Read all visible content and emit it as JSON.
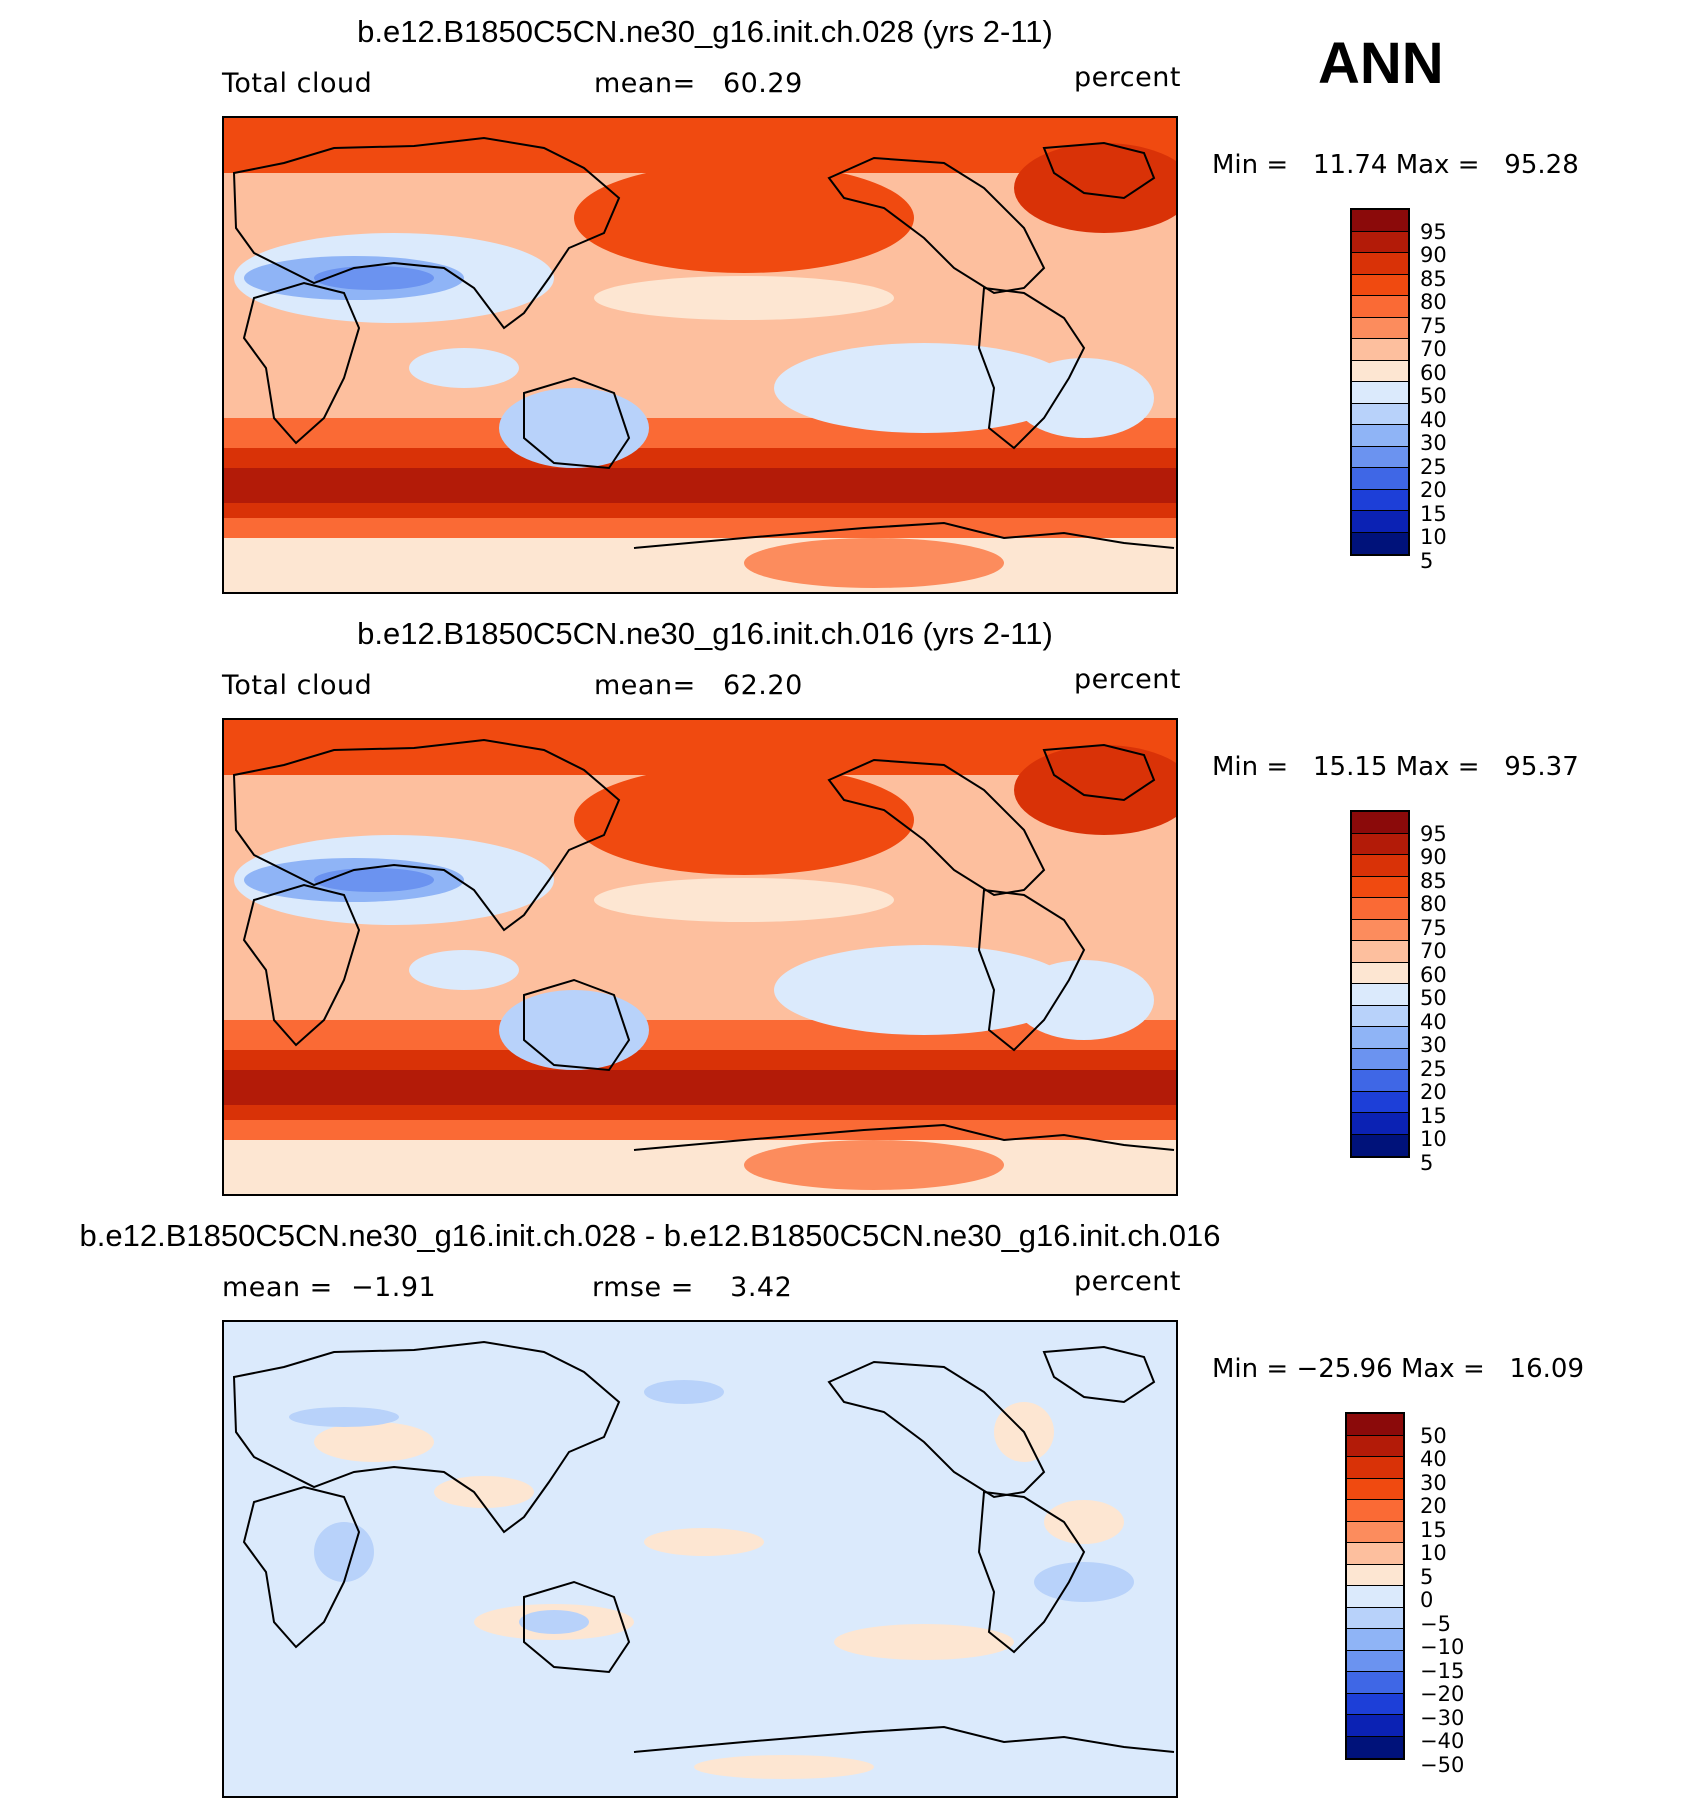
{
  "season_label": "ANN",
  "panels": [
    {
      "title": "b.e12.B1850C5CN.ne30_g16.init.ch.028 (yrs 2-11)",
      "left_label": "Total cloud",
      "center_label": "mean=",
      "center_value": "60.29",
      "units": "percent",
      "min_label": "Min =",
      "min_value": "11.74",
      "max_label": "Max =",
      "max_value": "95.28",
      "colorbar_labels": [
        "95",
        "90",
        "85",
        "80",
        "75",
        "70",
        "60",
        "50",
        "40",
        "30",
        "25",
        "20",
        "15",
        "10",
        "5"
      ],
      "colorbar_colors": [
        "#8b0a0a",
        "#b31b08",
        "#d93207",
        "#f04a10",
        "#fa6a35",
        "#fc8c5d",
        "#fdbf9e",
        "#fde6d2",
        "#dbeafc",
        "#b8d2fa",
        "#8fb4f6",
        "#6b93f0",
        "#3f67e6",
        "#1d3fd8",
        "#0b22b4",
        "#00127a"
      ],
      "field": "total_cloud_A"
    },
    {
      "title": "b.e12.B1850C5CN.ne30_g16.init.ch.016 (yrs 2-11)",
      "left_label": "Total cloud",
      "center_label": "mean=",
      "center_value": "62.20",
      "units": "percent",
      "min_label": "Min =",
      "min_value": "15.15",
      "max_label": "Max =",
      "max_value": "95.37",
      "colorbar_labels": [
        "95",
        "90",
        "85",
        "80",
        "75",
        "70",
        "60",
        "50",
        "40",
        "30",
        "25",
        "20",
        "15",
        "10",
        "5"
      ],
      "colorbar_colors": [
        "#8b0a0a",
        "#b31b08",
        "#d93207",
        "#f04a10",
        "#fa6a35",
        "#fc8c5d",
        "#fdbf9e",
        "#fde6d2",
        "#dbeafc",
        "#b8d2fa",
        "#8fb4f6",
        "#6b93f0",
        "#3f67e6",
        "#1d3fd8",
        "#0b22b4",
        "#00127a"
      ],
      "field": "total_cloud_B"
    },
    {
      "title": "b.e12.B1850C5CN.ne30_g16.init.ch.028 - b.e12.B1850C5CN.ne30_g16.init.ch.016",
      "left_label": "mean =",
      "left_value": "−1.91",
      "center_label": "rmse =",
      "center_value": "3.42",
      "units": "percent",
      "min_label": "Min =",
      "min_value": "−25.96",
      "max_label": "Max =",
      "max_value": "16.09",
      "colorbar_labels": [
        "50",
        "40",
        "30",
        "20",
        "15",
        "10",
        "5",
        "0",
        "−5",
        "−10",
        "−15",
        "−20",
        "−30",
        "−40",
        "−50"
      ],
      "colorbar_colors": [
        "#8b0a0a",
        "#b31b08",
        "#d93207",
        "#f04a10",
        "#fa6a35",
        "#fc8c5d",
        "#fdbf9e",
        "#fde6d2",
        "#dbeafc",
        "#b8d2fa",
        "#8fb4f6",
        "#6b93f0",
        "#3f67e6",
        "#1d3fd8",
        "#0b22b4",
        "#00127a"
      ],
      "field": "difference"
    }
  ],
  "map_colors": {
    "land_outline": "#000000",
    "background_high": "#f04a10",
    "background_mid": "#fdbf9e",
    "background_low": "#dbeafc"
  }
}
